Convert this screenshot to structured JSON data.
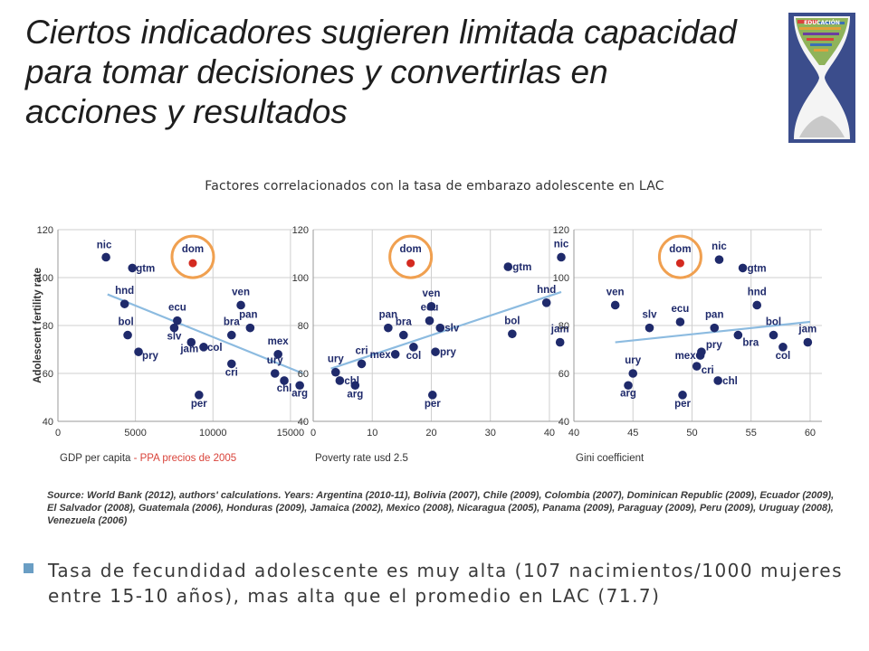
{
  "slide": {
    "title_lines": [
      "Ciertos indicadores sugieren limitada capacidad",
      "para tomar decisiones y convertirlas en",
      "acciones y resultados"
    ],
    "figure_title": "Factores correlacionados con la tasa de embarazo adolescente en LAC",
    "source": "Source: World Bank (2012), authors' calculations. Years: Argentina (2010-11), Bolivia (2007), Chile (2009), Colombia (2007), Dominican Republic (2009), Ecuador (2009), El Salvador (2008), Guatemala (2006), Honduras (2009), Jamaica (2002), Mexico (2008), Nicaragua (2005), Panama (2009), Paraguay (2009), Peru (2009), Uruguay (2008), Venezuela (2006)",
    "bullet": "Tasa de fecundidad adolescente es muy alta (107 nacimientos/1000 mujeres entre 15-10 años), mas alta que el promedio en LAC (71.7)",
    "logo_text": "EDUCACIÓN"
  },
  "colors": {
    "point": "#1f2a6b",
    "highlight_point": "#d42a20",
    "highlight_ring": "#f0a050",
    "trend": "#8cbbe0",
    "grid": "#cfcfcf",
    "axis_text": "#333333",
    "xlabel_accent": "#d9433a",
    "bullet": "#6a9ec4"
  },
  "chart_data": [
    {
      "type": "scatter",
      "xlabel": "GDP per capita",
      "xlabel_accent": " - PPA precios de 2005",
      "ylabel": "Adolescent fertility rate",
      "xlim": [
        0,
        16000
      ],
      "ylim": [
        40,
        120
      ],
      "xticks": [
        0,
        5000,
        10000,
        15000
      ],
      "yticks": [
        40,
        60,
        80,
        100,
        120
      ],
      "grid": true,
      "trend": [
        [
          3200,
          93
        ],
        [
          15800,
          60
        ]
      ],
      "highlight": "dom",
      "points": [
        {
          "label": "nic",
          "x": 3100,
          "y": 108.5
        },
        {
          "label": "gtm",
          "x": 4800,
          "y": 104
        },
        {
          "label": "dom",
          "x": 8700,
          "y": 106
        },
        {
          "label": "hnd",
          "x": 4300,
          "y": 89
        },
        {
          "label": "ecu",
          "x": 7700,
          "y": 82
        },
        {
          "label": "slv",
          "x": 7500,
          "y": 79
        },
        {
          "label": "bol",
          "x": 4500,
          "y": 76
        },
        {
          "label": "pry",
          "x": 5200,
          "y": 69
        },
        {
          "label": "jam",
          "x": 8600,
          "y": 73
        },
        {
          "label": "col",
          "x": 9400,
          "y": 71
        },
        {
          "label": "ven",
          "x": 11800,
          "y": 88.5
        },
        {
          "label": "pan",
          "x": 12400,
          "y": 79
        },
        {
          "label": "bra",
          "x": 11200,
          "y": 76
        },
        {
          "label": "cri",
          "x": 11200,
          "y": 64
        },
        {
          "label": "mex",
          "x": 14200,
          "y": 68
        },
        {
          "label": "ury",
          "x": 14000,
          "y": 60
        },
        {
          "label": "chl",
          "x": 14600,
          "y": 57
        },
        {
          "label": "arg",
          "x": 15600,
          "y": 55
        },
        {
          "label": "per",
          "x": 9100,
          "y": 51
        }
      ]
    },
    {
      "type": "scatter",
      "xlabel": "Poverty rate usd 2.5",
      "ylabel": "",
      "xlim": [
        0,
        42
      ],
      "ylim": [
        40,
        120
      ],
      "xticks": [
        0,
        10,
        20,
        30,
        40
      ],
      "yticks": [
        40,
        60,
        80,
        100,
        120
      ],
      "grid": true,
      "trend": [
        [
          3,
          62
        ],
        [
          42,
          94
        ]
      ],
      "highlight": "dom",
      "points": [
        {
          "label": "nic",
          "x": 42,
          "y": 108.5
        },
        {
          "label": "gtm",
          "x": 33,
          "y": 104.5
        },
        {
          "label": "dom",
          "x": 16.5,
          "y": 106
        },
        {
          "label": "hnd",
          "x": 39.5,
          "y": 89.5
        },
        {
          "label": "ven",
          "x": 20,
          "y": 88
        },
        {
          "label": "ecu",
          "x": 19.7,
          "y": 82
        },
        {
          "label": "slv",
          "x": 21.5,
          "y": 79
        },
        {
          "label": "pan",
          "x": 12.7,
          "y": 79
        },
        {
          "label": "bra",
          "x": 15.3,
          "y": 76
        },
        {
          "label": "bol",
          "x": 33.7,
          "y": 76.5
        },
        {
          "label": "jam",
          "x": 41.8,
          "y": 73
        },
        {
          "label": "pry",
          "x": 20.7,
          "y": 69
        },
        {
          "label": "col",
          "x": 17,
          "y": 71
        },
        {
          "label": "mex",
          "x": 13.9,
          "y": 68
        },
        {
          "label": "cri",
          "x": 8.2,
          "y": 64
        },
        {
          "label": "ury",
          "x": 3.8,
          "y": 60.5
        },
        {
          "label": "chl",
          "x": 4.5,
          "y": 57
        },
        {
          "label": "arg",
          "x": 7.1,
          "y": 55
        },
        {
          "label": "per",
          "x": 20.2,
          "y": 51
        }
      ]
    },
    {
      "type": "scatter",
      "xlabel": "Gini coefficient",
      "ylabel": "",
      "xlim": [
        40,
        61
      ],
      "ylim": [
        40,
        120
      ],
      "xticks": [
        40,
        45,
        50,
        55,
        60
      ],
      "yticks": [
        40,
        60,
        80,
        100,
        120
      ],
      "grid": true,
      "trend": [
        [
          43.5,
          73
        ],
        [
          60,
          81.5
        ]
      ],
      "highlight": "dom",
      "points": [
        {
          "label": "nic",
          "x": 52.3,
          "y": 107.5
        },
        {
          "label": "gtm",
          "x": 54.3,
          "y": 104
        },
        {
          "label": "dom",
          "x": 49,
          "y": 106
        },
        {
          "label": "hnd",
          "x": 55.5,
          "y": 88.5
        },
        {
          "label": "ven",
          "x": 43.5,
          "y": 88.5
        },
        {
          "label": "ecu",
          "x": 49,
          "y": 81.5
        },
        {
          "label": "slv",
          "x": 46.4,
          "y": 79
        },
        {
          "label": "pan",
          "x": 51.9,
          "y": 79
        },
        {
          "label": "bra",
          "x": 53.9,
          "y": 76
        },
        {
          "label": "bol",
          "x": 56.9,
          "y": 76
        },
        {
          "label": "jam",
          "x": 59.8,
          "y": 73
        },
        {
          "label": "col",
          "x": 57.7,
          "y": 71
        },
        {
          "label": "pry",
          "x": 50.8,
          "y": 69
        },
        {
          "label": "mex",
          "x": 50.7,
          "y": 67.5
        },
        {
          "label": "cri",
          "x": 50.4,
          "y": 63
        },
        {
          "label": "chl",
          "x": 52.2,
          "y": 57
        },
        {
          "label": "ury",
          "x": 45,
          "y": 60
        },
        {
          "label": "arg",
          "x": 44.6,
          "y": 55
        },
        {
          "label": "per",
          "x": 49.2,
          "y": 51
        }
      ]
    }
  ]
}
